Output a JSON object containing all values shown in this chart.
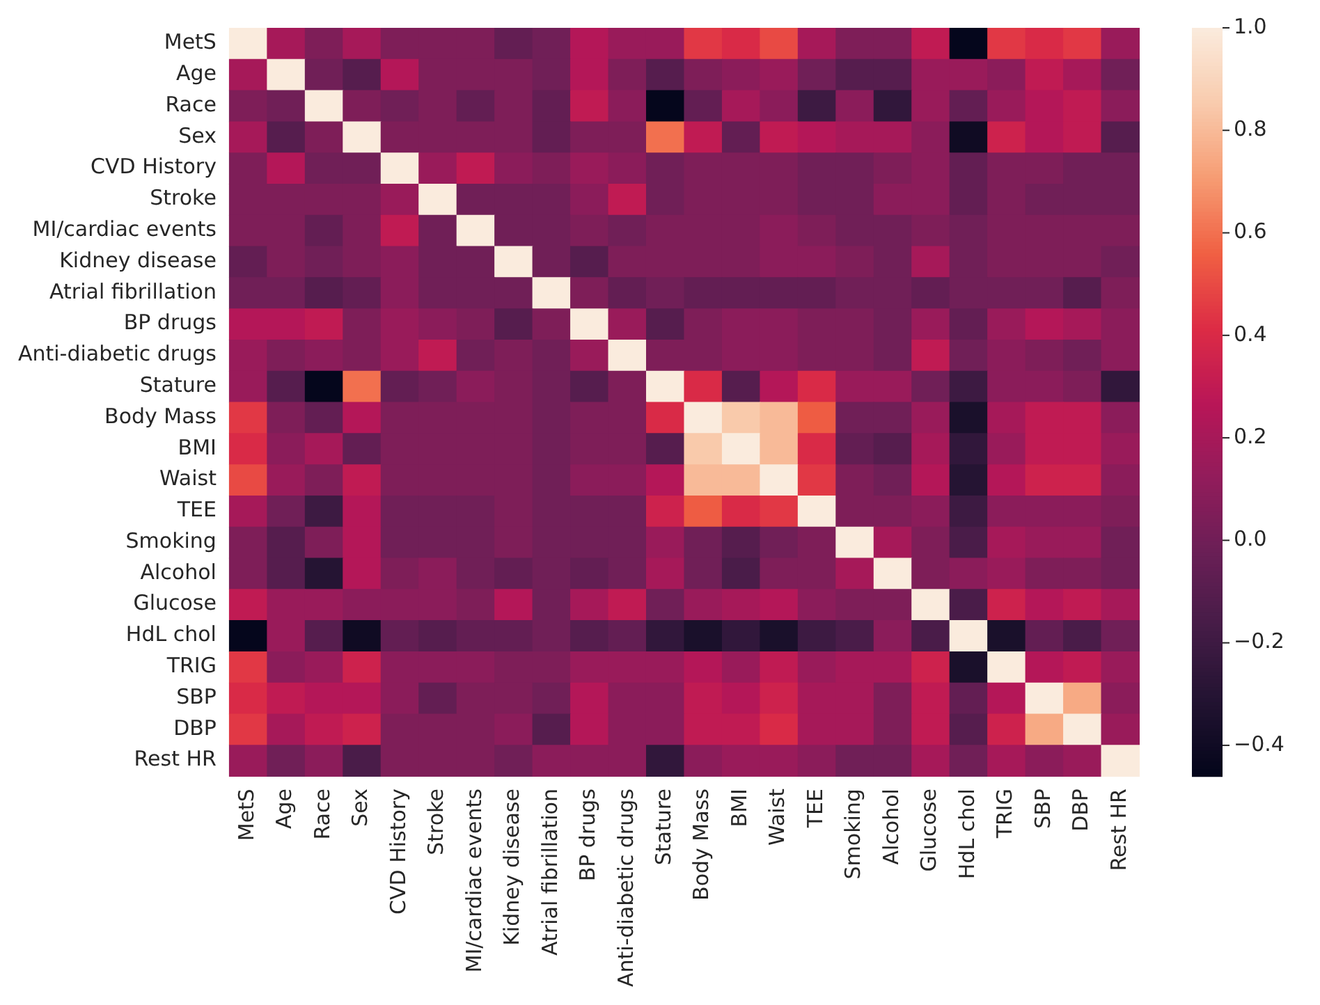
{
  "chart_data": {
    "type": "heatmap",
    "categories": [
      "MetS",
      "Age",
      "Race",
      "Sex",
      "CVD History",
      "Stroke",
      "MI/cardiac events",
      "Kidney disease",
      "Atrial fibrillation",
      "BP drugs",
      "Anti-diabetic drugs",
      "Stature",
      "Body Mass",
      "BMI",
      "Waist",
      "TEE",
      "Smoking",
      "Alcohol",
      "Glucose",
      "HdL chol",
      "TRIG",
      "SBP",
      "DBP",
      "Rest HR"
    ],
    "y_categories": [
      "MetS",
      "Age",
      "Race",
      "Sex",
      "CVD History",
      "Stroke",
      "MI/cardiac events",
      "Kidney disease",
      "Atrial fibrillation",
      "BP drugs",
      "Anti-diabetic drugs",
      "Stature",
      "Body Mass",
      "BMI",
      "Waist",
      "TEE",
      "Smoking",
      "Alcohol",
      "Glucose",
      "HdL chol",
      "TRIG",
      "SBP",
      "DBP",
      "Rest HR"
    ],
    "cells": [
      [
        1,
        0.2,
        0.05,
        0.2,
        0.05,
        0.05,
        0.05,
        -0.05,
        0,
        0.25,
        0.15,
        0.15,
        0.45,
        0.4,
        0.5,
        0.2,
        0.05,
        0.05,
        0.3,
        -0.45,
        0.45,
        0.4,
        0.45,
        0.15
      ],
      [
        0.2,
        1,
        0,
        -0.1,
        0.25,
        0.05,
        0.05,
        0.05,
        0,
        0.25,
        0.05,
        -0.1,
        0.05,
        0.1,
        0.15,
        0,
        -0.1,
        -0.1,
        0.15,
        0.15,
        0.1,
        0.3,
        0.2,
        0
      ],
      [
        0.05,
        0,
        1,
        0.05,
        0,
        0.05,
        -0.05,
        0.05,
        -0.05,
        0.3,
        0.1,
        -0.45,
        -0.05,
        0.2,
        0.1,
        -0.2,
        0.1,
        -0.25,
        0.15,
        -0.05,
        0.15,
        0.25,
        0.3,
        0.1
      ],
      [
        0.2,
        -0.1,
        0.05,
        1,
        0.05,
        0.05,
        0.05,
        0.05,
        -0.05,
        0.05,
        0.05,
        0.6,
        0.3,
        -0.05,
        0.3,
        0.25,
        0.2,
        0.2,
        0.1,
        -0.4,
        0.35,
        0.25,
        0.3,
        -0.1
      ],
      [
        0.05,
        0.25,
        0,
        0,
        1,
        0.15,
        0.3,
        0.1,
        0.05,
        0.15,
        0.1,
        0,
        0.05,
        0.05,
        0.05,
        0,
        0,
        0.05,
        0.1,
        -0.05,
        0.05,
        0.05,
        0,
        0
      ],
      [
        0.05,
        0.05,
        0.05,
        0.05,
        0.15,
        1,
        0,
        0,
        0,
        0.1,
        0.3,
        0,
        0.05,
        0.05,
        0.05,
        0,
        0,
        0.1,
        0.1,
        -0.05,
        0.05,
        0,
        0,
        0
      ],
      [
        0.05,
        0.05,
        -0.05,
        0.05,
        0.3,
        0,
        1,
        0,
        0,
        0.05,
        0,
        0.05,
        0.05,
        0.05,
        0.1,
        0.05,
        0,
        0,
        0.05,
        0,
        0.05,
        0.05,
        0.05,
        0.05
      ],
      [
        -0.05,
        0.05,
        0,
        0.05,
        0.1,
        0,
        0,
        1,
        0,
        -0.1,
        0.05,
        0.05,
        0.05,
        0.05,
        0.1,
        0.1,
        0.05,
        0,
        0.2,
        0,
        0.05,
        0.05,
        0.05,
        0
      ],
      [
        0,
        0,
        -0.1,
        -0.05,
        0.1,
        0,
        0,
        0,
        1,
        0.05,
        -0.05,
        0,
        -0.05,
        -0.05,
        -0.05,
        -0.05,
        0,
        0,
        -0.05,
        0,
        0,
        0,
        -0.1,
        0.05
      ],
      [
        0.25,
        0.25,
        0.3,
        0.05,
        0.15,
        0.1,
        0.05,
        -0.1,
        0.05,
        1,
        0.15,
        -0.1,
        0.05,
        0.1,
        0.1,
        0.05,
        0.05,
        0,
        0.15,
        -0.05,
        0.15,
        0.25,
        0.2,
        0.1
      ],
      [
        0.15,
        0.05,
        0.1,
        0.05,
        0.15,
        0.3,
        0,
        0.05,
        0,
        0.15,
        1,
        0.05,
        0.05,
        0.1,
        0.1,
        0.05,
        0.05,
        0,
        0.3,
        0,
        0.1,
        0.05,
        0,
        0.1
      ],
      [
        0.15,
        -0.1,
        -0.45,
        0.6,
        -0.05,
        0,
        0.1,
        0.05,
        0,
        -0.1,
        0.05,
        1,
        0.4,
        -0.1,
        0.25,
        0.4,
        0.15,
        0.15,
        0,
        -0.2,
        0.1,
        0.1,
        0.05,
        -0.25
      ],
      [
        0.45,
        0.05,
        -0.05,
        0.25,
        0.05,
        0.05,
        0.05,
        0.05,
        0,
        0.05,
        0.05,
        0.4,
        1,
        0.85,
        0.8,
        0.55,
        0,
        0,
        0.15,
        -0.35,
        0.2,
        0.3,
        0.3,
        0.1
      ],
      [
        0.4,
        0.1,
        0.2,
        -0.05,
        0.05,
        0.05,
        0.05,
        0.05,
        0,
        0.05,
        0.05,
        -0.1,
        0.85,
        1,
        0.8,
        0.4,
        -0.05,
        -0.1,
        0.2,
        -0.25,
        0.15,
        0.3,
        0.3,
        0.15
      ],
      [
        0.5,
        0.15,
        0.05,
        0.3,
        0.05,
        0.05,
        0.05,
        0.05,
        0,
        0.1,
        0.1,
        0.25,
        0.8,
        0.8,
        1,
        0.45,
        0.05,
        0,
        0.25,
        -0.3,
        0.25,
        0.35,
        0.35,
        0.1
      ],
      [
        0.2,
        0,
        -0.2,
        0.25,
        0,
        0,
        0,
        0.05,
        0,
        0,
        0,
        0.35,
        0.55,
        0.4,
        0.45,
        1,
        0.05,
        0.05,
        0.1,
        -0.2,
        0.1,
        0.1,
        0.1,
        0.05
      ],
      [
        0.05,
        -0.1,
        0.05,
        0.25,
        0,
        0,
        0,
        0.05,
        0,
        0,
        0,
        0.15,
        0,
        -0.1,
        0,
        0.05,
        1,
        0.2,
        0.05,
        -0.15,
        0.2,
        0.15,
        0.15,
        0
      ],
      [
        0.05,
        -0.1,
        -0.3,
        0.25,
        0.05,
        0.1,
        0,
        -0.05,
        0,
        -0.05,
        0,
        0.2,
        0,
        -0.15,
        0.05,
        0.05,
        0.2,
        1,
        0.05,
        0.1,
        0.15,
        0.05,
        0.05,
        0
      ],
      [
        0.3,
        0.15,
        0.15,
        0.1,
        0.1,
        0.1,
        0.05,
        0.25,
        0,
        0.2,
        0.3,
        0,
        0.15,
        0.2,
        0.25,
        0.1,
        0.05,
        0.05,
        1,
        -0.15,
        0.35,
        0.25,
        0.3,
        0.2
      ],
      [
        -0.45,
        0.15,
        -0.1,
        -0.4,
        -0.05,
        -0.1,
        -0.05,
        -0.05,
        0,
        -0.1,
        -0.05,
        -0.25,
        -0.35,
        -0.25,
        -0.35,
        -0.2,
        -0.15,
        0.1,
        -0.15,
        1,
        -0.35,
        -0.05,
        -0.15,
        0
      ],
      [
        0.45,
        0.1,
        0.15,
        0.35,
        0.1,
        0.1,
        0.1,
        0.05,
        0.05,
        0.15,
        0.15,
        0.15,
        0.25,
        0.15,
        0.3,
        0.15,
        0.2,
        0.2,
        0.35,
        -0.35,
        1,
        0.25,
        0.3,
        0.15
      ],
      [
        0.4,
        0.3,
        0.25,
        0.25,
        0.1,
        -0.05,
        0.05,
        0.05,
        0,
        0.25,
        0.1,
        0.1,
        0.3,
        0.25,
        0.35,
        0.2,
        0.2,
        0.05,
        0.3,
        -0.05,
        0.25,
        1,
        0.75,
        0.1
      ],
      [
        0.45,
        0.2,
        0.3,
        0.35,
        0.05,
        0.05,
        0.05,
        0.1,
        -0.1,
        0.25,
        0.1,
        0.1,
        0.3,
        0.3,
        0.4,
        0.2,
        0.2,
        0.05,
        0.3,
        -0.1,
        0.35,
        0.75,
        1,
        0.15
      ],
      [
        0.15,
        0,
        0.1,
        -0.15,
        0.05,
        0.05,
        0.05,
        0,
        0.1,
        0.1,
        0.1,
        -0.25,
        0.1,
        0.15,
        0.15,
        0.1,
        0,
        0,
        0.2,
        0,
        0.2,
        0.1,
        0.15,
        1
      ]
    ],
    "clim": [
      -0.46,
      1
    ],
    "cticks": [
      {
        "value": -0.4,
        "label": "−0.4"
      },
      {
        "value": -0.2,
        "label": "−0.2"
      },
      {
        "value": 0,
        "label": "0.0"
      },
      0.2,
      0.4,
      0.6,
      0.8,
      {
        "value": 1,
        "label": "1.0"
      }
    ]
  }
}
